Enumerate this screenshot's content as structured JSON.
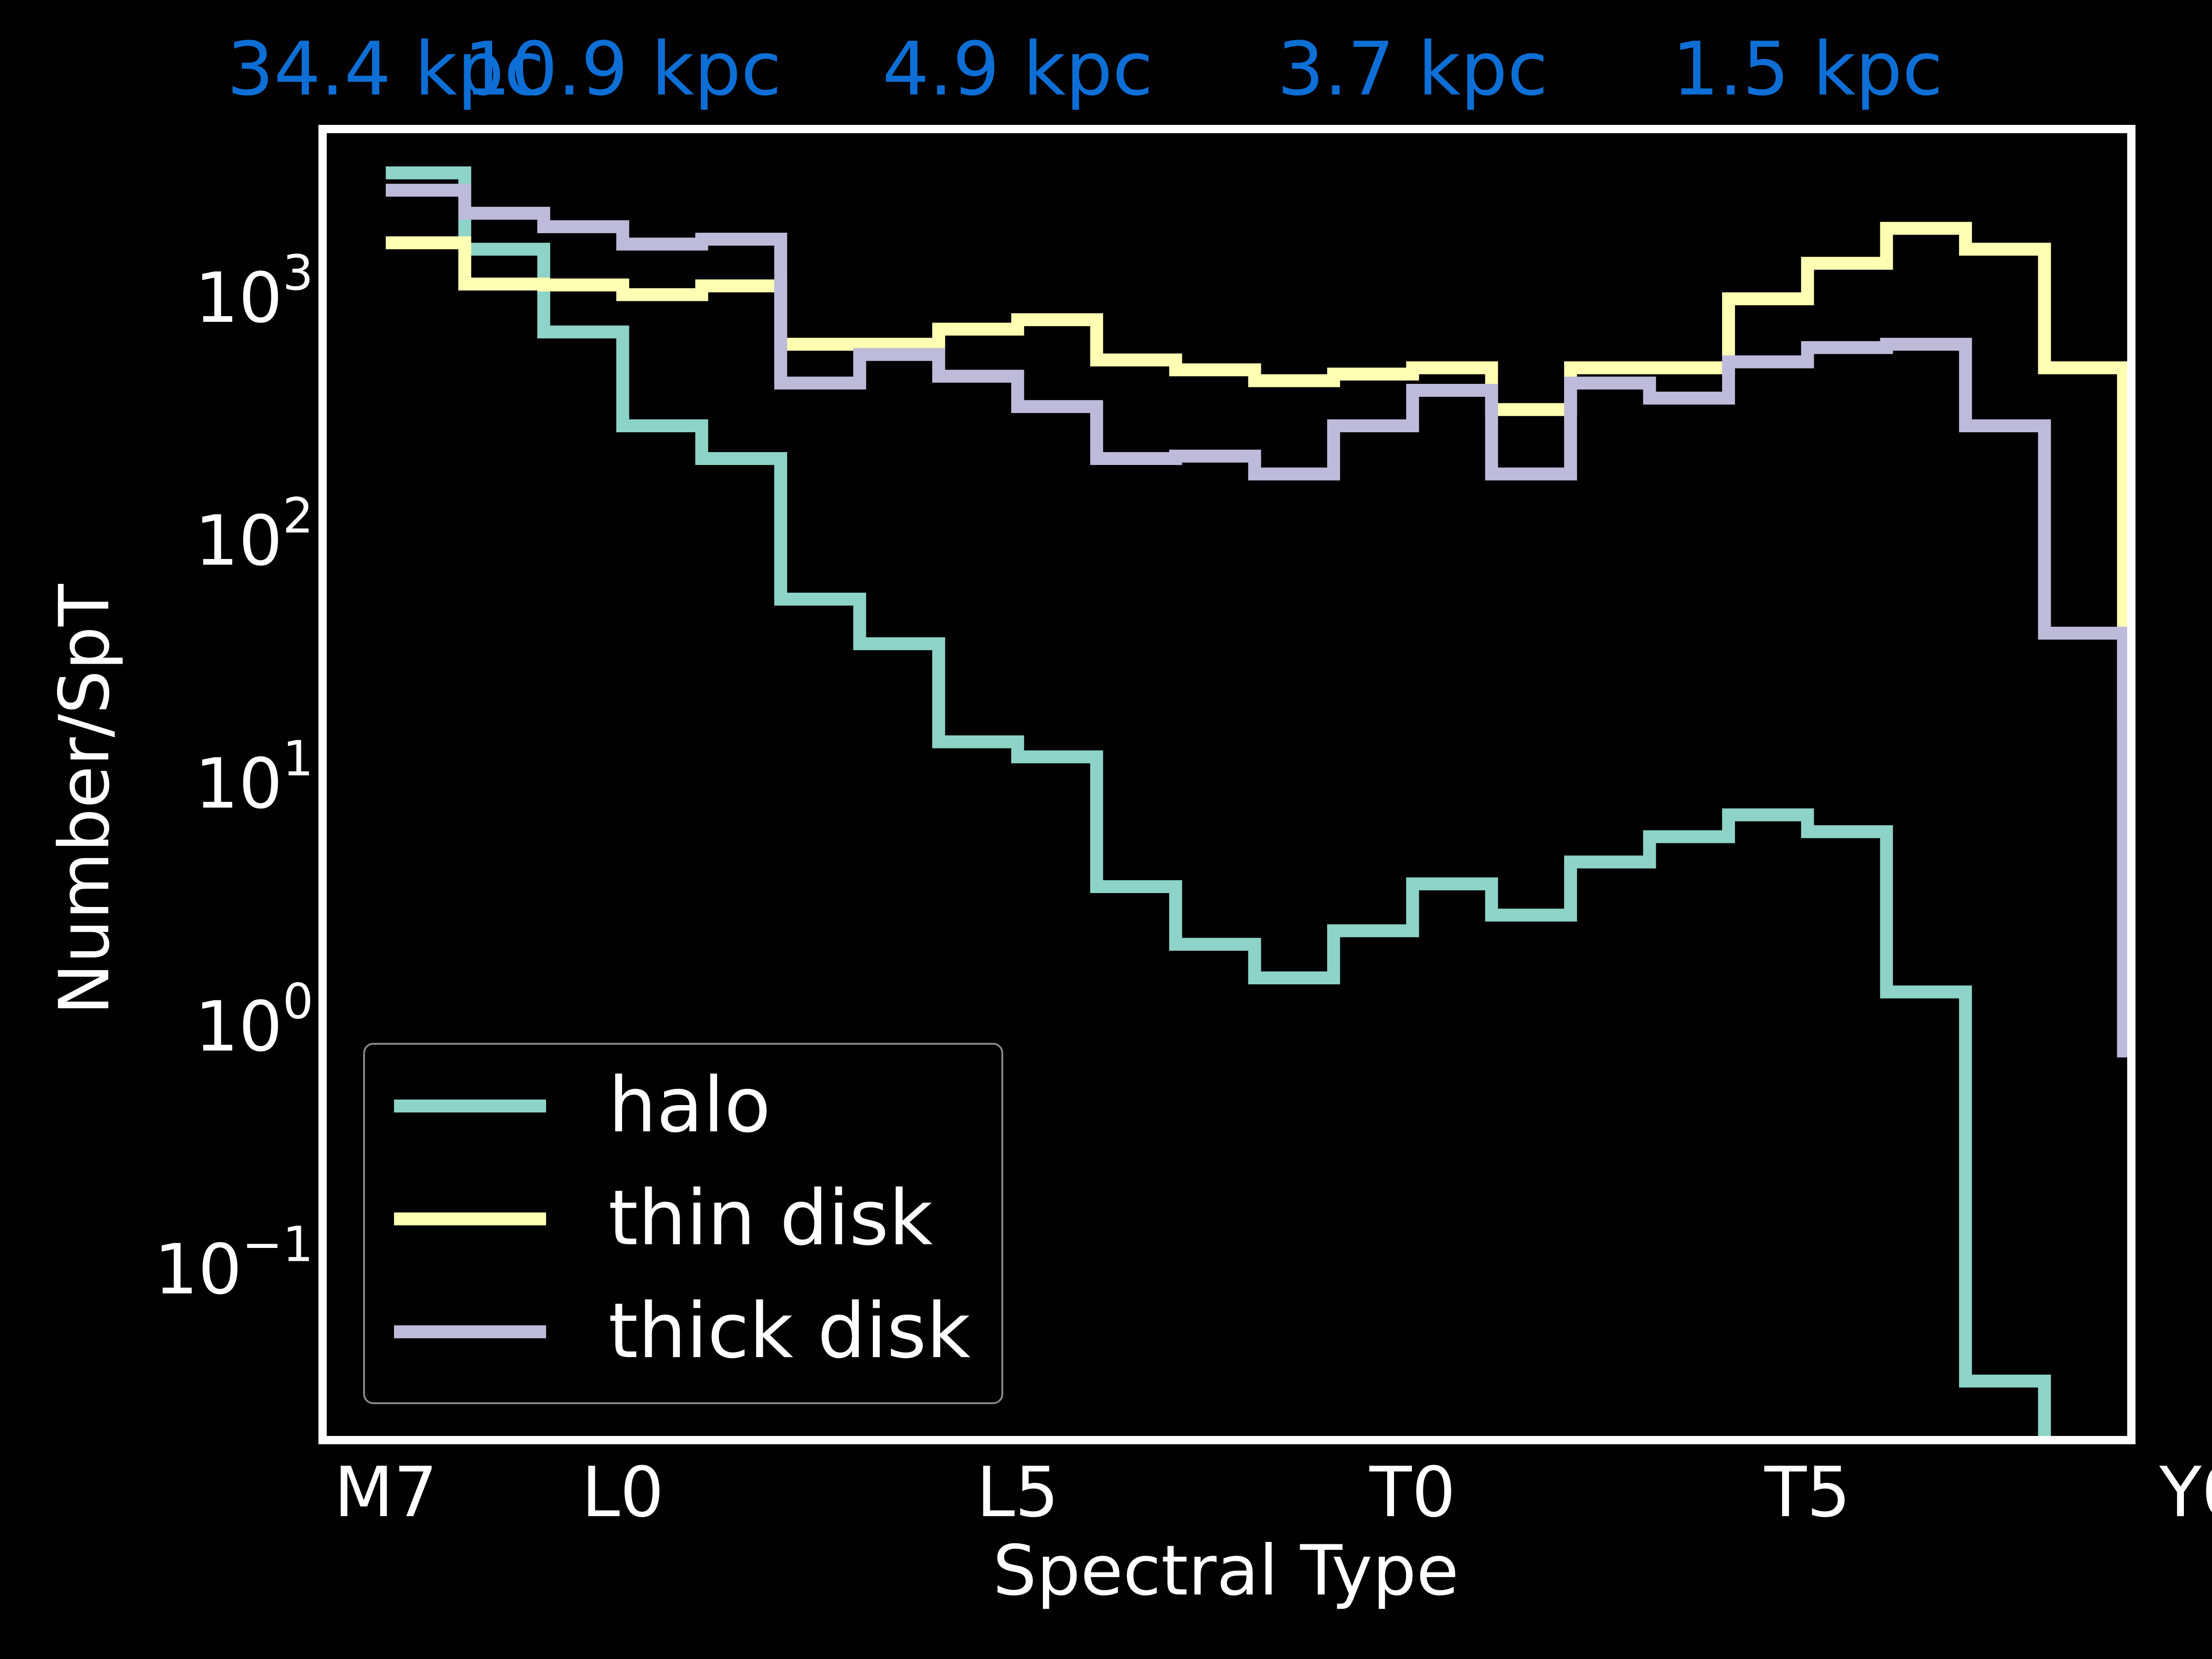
{
  "chart_data": {
    "type": "line",
    "drawstyle": "steps-post",
    "title": "",
    "xlabel": "Spectral Type",
    "ylabel": "Number/SpT",
    "yscale": "log",
    "ylim": [
      0.02,
      5000
    ],
    "xlim": [
      16.2,
      39.1
    ],
    "background": "#000000",
    "grid": false,
    "legend_position": "bottom-left",
    "x_ticks": [
      {
        "value": 17,
        "label": "M7"
      },
      {
        "value": 20,
        "label": "L0"
      },
      {
        "value": 25,
        "label": "L5"
      },
      {
        "value": 30,
        "label": "T0"
      },
      {
        "value": 35,
        "label": "T5"
      },
      {
        "value": 40,
        "label": "Y0"
      }
    ],
    "y_ticks": [
      {
        "value": 0.1,
        "base": "10",
        "exp": "−1"
      },
      {
        "value": 1,
        "base": "10",
        "exp": "0"
      },
      {
        "value": 10,
        "base": "10",
        "exp": "1"
      },
      {
        "value": 100,
        "base": "10",
        "exp": "2"
      },
      {
        "value": 1000,
        "base": "10",
        "exp": "3"
      }
    ],
    "top_labels": [
      {
        "value": 17,
        "label": "34.4 kpc"
      },
      {
        "value": 20,
        "label": "10.9 kpc"
      },
      {
        "value": 25,
        "label": "4.9 kpc"
      },
      {
        "value": 30,
        "label": "3.7 kpc"
      },
      {
        "value": 35,
        "label": "1.5 kpc"
      }
    ],
    "top_label_color": "#0d6fd6",
    "x": [
      17,
      18,
      19,
      20,
      21,
      22,
      23,
      24,
      25,
      26,
      27,
      28,
      29,
      30,
      31,
      32,
      33,
      34,
      35,
      36,
      37,
      38,
      39
    ],
    "series": [
      {
        "name": "halo",
        "color": "#8dd3c7",
        "values": [
          3300,
          1600,
          730,
          300,
          220,
          58,
          38,
          15,
          13,
          3.8,
          2.2,
          1.6,
          2.5,
          3.9,
          2.9,
          4.8,
          6.1,
          7.5,
          6.4,
          1.4,
          0.035,
          0.018,
          null
        ]
      },
      {
        "name": "thin disk",
        "color": "#ffffb3",
        "values": [
          1700,
          1150,
          1140,
          1040,
          1130,
          650,
          650,
          750,
          820,
          560,
          510,
          460,
          490,
          520,
          350,
          520,
          520,
          1000,
          1400,
          1950,
          1600,
          520,
          19
        ]
      },
      {
        "name": "thick disk",
        "color": "#bebada",
        "values": [
          2800,
          2250,
          1980,
          1680,
          1760,
          450,
          590,
          480,
          360,
          220,
          225,
          190,
          300,
          420,
          190,
          450,
          390,
          550,
          630,
          650,
          300,
          42,
          0.8
        ]
      }
    ]
  }
}
